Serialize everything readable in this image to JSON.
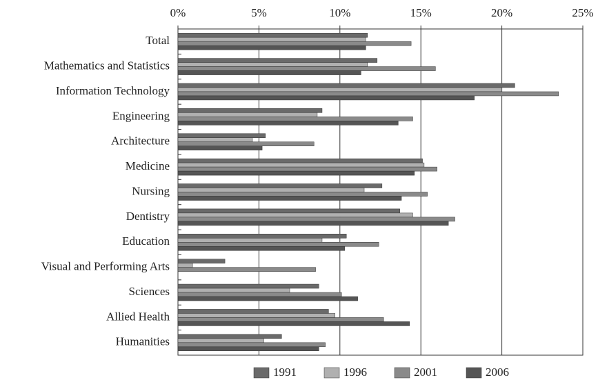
{
  "chart_data": {
    "type": "bar",
    "orientation": "horizontal",
    "categories": [
      "Total",
      "Mathematics and Statistics",
      "Information Technology",
      "Engineering",
      "Architecture",
      "Medicine",
      "Nursing",
      "Dentistry",
      "Education",
      "Visual and Performing Arts",
      "Sciences",
      "Allied Health",
      "Humanities"
    ],
    "series": [
      {
        "name": "1991",
        "color": "#6a6a6a",
        "values": [
          11.7,
          12.3,
          20.8,
          8.9,
          5.4,
          15.1,
          12.6,
          13.7,
          10.4,
          2.9,
          8.7,
          9.3,
          6.4
        ]
      },
      {
        "name": "1996",
        "color": "#b0b0b0",
        "values": [
          11.6,
          11.7,
          20.0,
          8.6,
          4.6,
          15.2,
          11.5,
          14.5,
          8.9,
          0.9,
          6.9,
          9.7,
          5.3
        ]
      },
      {
        "name": "2001",
        "color": "#8a8a8a",
        "values": [
          14.4,
          15.9,
          23.5,
          14.5,
          8.4,
          16.0,
          15.4,
          17.1,
          12.4,
          8.5,
          10.1,
          12.7,
          9.1
        ]
      },
      {
        "name": "2006",
        "color": "#555555",
        "values": [
          11.6,
          11.3,
          18.3,
          13.6,
          5.2,
          14.6,
          13.8,
          16.7,
          10.3,
          null,
          11.1,
          14.3,
          8.7
        ]
      }
    ],
    "xlim": [
      0,
      25
    ],
    "xticks": [
      {
        "value": 0,
        "label": "0%"
      },
      {
        "value": 5,
        "label": "5%"
      },
      {
        "value": 10,
        "label": "10%"
      },
      {
        "value": 15,
        "label": "15%"
      },
      {
        "value": 20,
        "label": "20%"
      },
      {
        "value": 25,
        "label": "25%"
      }
    ],
    "grid": true,
    "legend": "bottom"
  }
}
